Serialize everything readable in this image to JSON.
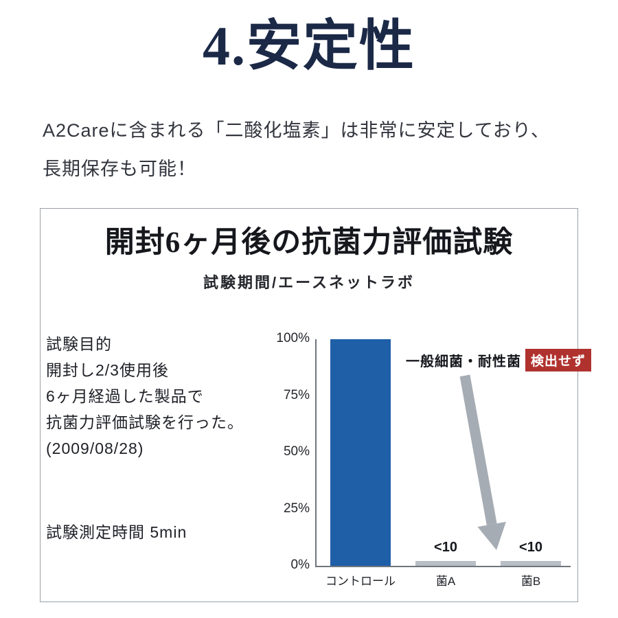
{
  "title": "4.安定性",
  "intro": {
    "line1": "A2Careに含まれる「二酸化塩素」は非常に安定しており、",
    "line2": "長期保存も可能！"
  },
  "panel": {
    "heading": "開封6ヶ月後の抗菌力評価試験",
    "subheading": "試験期間/エースネットラボ",
    "purpose_lines": [
      "試験目的",
      "開封し2/3使用後",
      "6ヶ月経過した製品で",
      "抗菌力評価試験を行った。",
      "(2009/08/28)"
    ],
    "measurement_time": "試験測定時間 5min",
    "annotation_label": "一般細菌・耐性菌",
    "annotation_badge": "検出せず"
  },
  "chart_data": {
    "type": "bar",
    "title": "開封6ヶ月後の抗菌力評価試験",
    "subtitle": "試験期間/エースネットラボ",
    "categories": [
      "コントロール",
      "菌A",
      "菌B"
    ],
    "values": [
      100,
      2,
      2
    ],
    "value_labels": [
      "",
      "<10",
      "<10"
    ],
    "ytick_labels": [
      "100%",
      "75%",
      "50%",
      "25%",
      "0%"
    ],
    "ylim": [
      0,
      100
    ],
    "grid": false,
    "legend": "none",
    "bar_colors": [
      "#1f5fa8",
      "#b8bec5",
      "#b8bec5"
    ],
    "annotation": {
      "label": "一般細菌・耐性菌",
      "badge": "検出せず",
      "badge_color": "#b0322e",
      "arrow_color": "#a6acb4"
    }
  },
  "colors": {
    "title_navy": "#1b2947",
    "bar_blue": "#1f5fa8",
    "bar_gray": "#b8bec5",
    "badge_red": "#b0322e",
    "axis_gray": "#6f757c"
  }
}
